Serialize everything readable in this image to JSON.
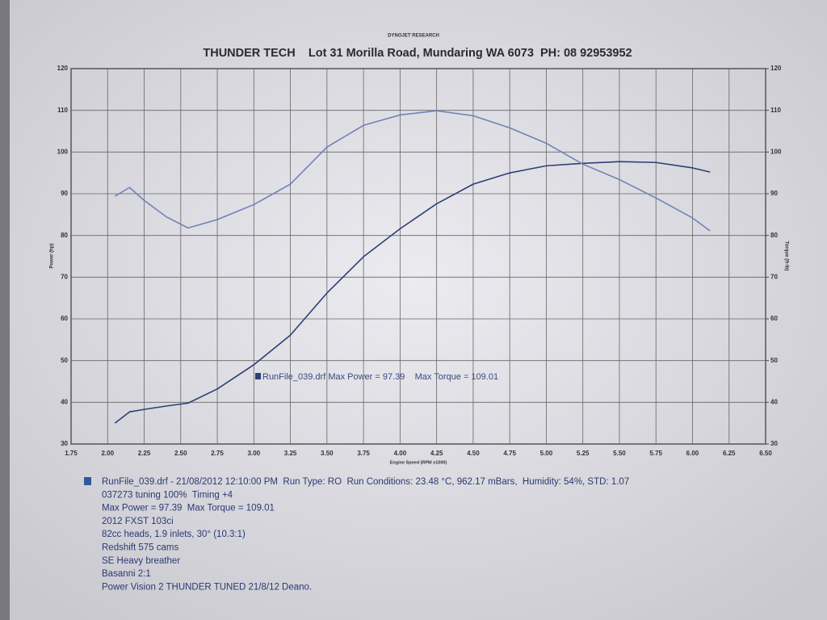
{
  "header": "DYNOJET RESEARCH",
  "chart_data": {
    "type": "line",
    "title": "THUNDER TECH    Lot 31 Morilla Road, Mundaring WA 6073  PH: 08 92953952",
    "x_label": "Engine Speed (RPM x1000)",
    "y_label": "Power (hp)",
    "y2_label": "Torque (ft-lb)",
    "legend_text": "RunFile_039.drf Max Power = 97.39    Max Torque = 109.01",
    "x": [
      2.05,
      2.15,
      2.25,
      2.4,
      2.55,
      2.75,
      3.0,
      3.25,
      3.5,
      3.75,
      4.0,
      4.25,
      4.5,
      4.75,
      5.0,
      5.25,
      5.5,
      5.75,
      6.0,
      6.12
    ],
    "series": [
      {
        "color": "#2c3f78",
        "values": [
          35.0,
          37.7,
          38.3,
          39.1,
          39.8,
          43.2,
          49.0,
          56.1,
          66.2,
          74.9,
          81.6,
          87.6,
          92.3,
          95.0,
          96.7,
          97.3,
          97.7,
          97.5,
          96.2,
          95.2
        ]
      },
      {
        "color": "#6f82b8",
        "axis": "y2",
        "values": [
          89.4,
          91.5,
          88.4,
          84.5,
          81.8,
          83.8,
          87.4,
          92.3,
          101.2,
          106.4,
          108.9,
          109.9,
          108.7,
          105.8,
          102.1,
          97.1,
          93.4,
          89.0,
          84.2,
          81.1
        ]
      }
    ],
    "xlim": [
      1.75,
      6.5
    ],
    "xticks": [
      {
        "value": 1.75,
        "label": "1.75"
      },
      {
        "value": 2,
        "label": "2.00"
      },
      {
        "value": 2.25,
        "label": "2.25"
      },
      {
        "value": 2.5,
        "label": "2.50"
      },
      {
        "value": 2.75,
        "label": "2.75"
      },
      {
        "value": 3,
        "label": "3.00"
      },
      {
        "value": 3.25,
        "label": "3.25"
      },
      {
        "value": 3.5,
        "label": "3.50"
      },
      {
        "value": 3.75,
        "label": "3.75"
      },
      {
        "value": 4,
        "label": "4.00"
      },
      {
        "value": 4.25,
        "label": "4.25"
      },
      {
        "value": 4.5,
        "label": "4.50"
      },
      {
        "value": 4.75,
        "label": "4.75"
      },
      {
        "value": 5,
        "label": "5.00"
      },
      {
        "value": 5.25,
        "label": "5.25"
      },
      {
        "value": 5.5,
        "label": "5.50"
      },
      {
        "value": 5.75,
        "label": "5.75"
      },
      {
        "value": 6,
        "label": "6.00"
      },
      {
        "value": 6.25,
        "label": "6.25"
      },
      {
        "value": 6.5,
        "label": "6.50"
      }
    ],
    "ylim": [
      30,
      120
    ],
    "yticks": [
      30,
      40,
      50,
      60,
      70,
      80,
      90,
      100,
      110,
      120
    ],
    "y2lim": [
      30,
      120
    ],
    "y2ticks": [
      30,
      40,
      50,
      60,
      70,
      80,
      90,
      100,
      110,
      120
    ],
    "grid": true
  },
  "notes": [
    "RunFile_039.drf - 21/08/2012 12:10:00 PM  Run Type: RO  Run Conditions: 23.48 °C, 962.17 mBars,  Humidity: 54%, STD: 1.07",
    "037273 tuning 100%  Timing +4",
    "Max Power = 97.39  Max Torque = 109.01",
    "2012 FXST 103ci",
    "82cc heads, 1.9 inlets, 30° (10.3:1)",
    "Redshift 575 cams",
    "SE Heavy breather",
    "Basanni 2:1",
    "Power Vision 2 THUNDER TUNED 21/8/12 Deano."
  ]
}
